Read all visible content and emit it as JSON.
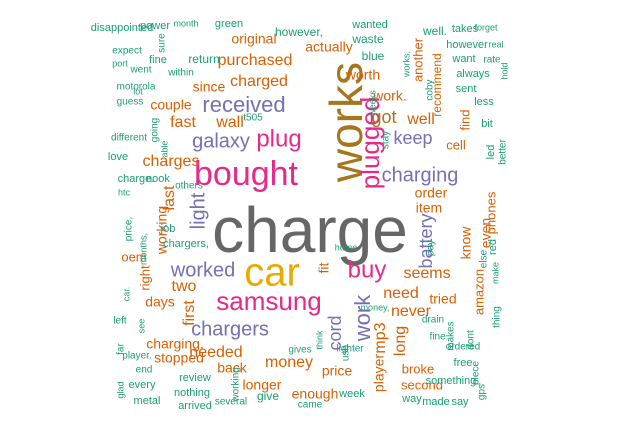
{
  "palette": {
    "teal": "#1b9e77",
    "orange": "#d95f02",
    "purple": "#7570b3",
    "magenta": "#e7298a",
    "gold": "#e6ab02",
    "brown": "#a6761d",
    "gray": "#666666"
  },
  "words": [
    {
      "text": "charge",
      "color": "gray"
    },
    {
      "text": "car",
      "color": "gold"
    },
    {
      "text": "works",
      "color": "brown"
    },
    {
      "text": "bought",
      "color": "magenta"
    },
    {
      "text": "samsung",
      "color": "magenta"
    },
    {
      "text": "plugged",
      "color": "magenta"
    },
    {
      "text": "buy",
      "color": "magenta"
    },
    {
      "text": "plug",
      "color": "magenta"
    },
    {
      "text": "work",
      "color": "purple"
    },
    {
      "text": "received",
      "color": "purple"
    },
    {
      "text": "charging",
      "color": "purple"
    },
    {
      "text": "galaxy",
      "color": "purple"
    },
    {
      "text": "chargers",
      "color": "purple"
    },
    {
      "text": "worked",
      "color": "purple"
    },
    {
      "text": "light",
      "color": "purple"
    },
    {
      "text": "cord",
      "color": "purple"
    },
    {
      "text": "keep",
      "color": "purple"
    },
    {
      "text": "battery",
      "color": "purple"
    },
    {
      "text": "got",
      "color": "brown"
    },
    {
      "text": "purchased",
      "color": "orange"
    },
    {
      "text": "charged",
      "color": "orange"
    },
    {
      "text": "fast",
      "color": "orange"
    },
    {
      "text": "wall",
      "color": "orange"
    },
    {
      "text": "charges",
      "color": "orange"
    },
    {
      "text": "last",
      "color": "orange"
    },
    {
      "text": "two",
      "color": "orange"
    },
    {
      "text": "first",
      "color": "orange"
    },
    {
      "text": "needed",
      "color": "orange"
    },
    {
      "text": "money",
      "color": "orange"
    },
    {
      "text": "price",
      "color": "orange"
    },
    {
      "text": "seems",
      "color": "orange"
    },
    {
      "text": "need",
      "color": "orange"
    },
    {
      "text": "never",
      "color": "orange"
    },
    {
      "text": "long",
      "color": "orange"
    },
    {
      "text": "mp3",
      "color": "orange"
    },
    {
      "text": "order",
      "color": "orange"
    },
    {
      "text": "item",
      "color": "orange"
    },
    {
      "text": "well",
      "color": "orange"
    },
    {
      "text": "worth",
      "color": "orange"
    },
    {
      "text": "actually",
      "color": "orange"
    },
    {
      "text": "original",
      "color": "orange"
    },
    {
      "text": "since",
      "color": "orange"
    },
    {
      "text": "couple",
      "color": "orange"
    },
    {
      "text": "days",
      "color": "orange"
    },
    {
      "text": "back",
      "color": "orange"
    },
    {
      "text": "longer",
      "color": "orange"
    },
    {
      "text": "enough",
      "color": "orange"
    },
    {
      "text": "stopped",
      "color": "orange"
    },
    {
      "text": "charging.",
      "color": "orange"
    },
    {
      "text": "working",
      "color": "orange"
    },
    {
      "text": "right",
      "color": "orange"
    },
    {
      "text": "tried",
      "color": "orange"
    },
    {
      "text": "know",
      "color": "orange"
    },
    {
      "text": "even",
      "color": "orange"
    },
    {
      "text": "fit",
      "color": "orange"
    },
    {
      "text": "work.",
      "color": "orange"
    },
    {
      "text": "player",
      "color": "orange"
    },
    {
      "text": "broke",
      "color": "orange"
    },
    {
      "text": "second",
      "color": "orange"
    },
    {
      "text": "amazon",
      "color": "orange"
    },
    {
      "text": "phones",
      "color": "orange"
    },
    {
      "text": "find",
      "color": "orange"
    },
    {
      "text": "recommend",
      "color": "orange"
    },
    {
      "text": "another",
      "color": "orange"
    },
    {
      "text": "cell",
      "color": "orange"
    },
    {
      "text": "oem",
      "color": "orange"
    },
    {
      "text": "disappointed",
      "color": "teal"
    },
    {
      "text": "power",
      "color": "teal"
    },
    {
      "text": "month",
      "color": "teal"
    },
    {
      "text": "green",
      "color": "teal"
    },
    {
      "text": "however,",
      "color": "teal"
    },
    {
      "text": "wanted",
      "color": "teal"
    },
    {
      "text": "well.",
      "color": "teal"
    },
    {
      "text": "takes",
      "color": "teal"
    },
    {
      "text": "forget",
      "color": "teal"
    },
    {
      "text": "sure",
      "color": "teal"
    },
    {
      "text": "waste",
      "color": "teal"
    },
    {
      "text": "however",
      "color": "teal"
    },
    {
      "text": "real",
      "color": "teal"
    },
    {
      "text": "expect",
      "color": "teal"
    },
    {
      "text": "fine",
      "color": "teal"
    },
    {
      "text": "return",
      "color": "teal"
    },
    {
      "text": "blue",
      "color": "teal"
    },
    {
      "text": "works.",
      "color": "teal"
    },
    {
      "text": "want",
      "color": "teal"
    },
    {
      "text": "rate",
      "color": "teal"
    },
    {
      "text": "port",
      "color": "teal"
    },
    {
      "text": "went",
      "color": "teal"
    },
    {
      "text": "within",
      "color": "teal"
    },
    {
      "text": "always",
      "color": "teal"
    },
    {
      "text": "hold",
      "color": "teal"
    },
    {
      "text": "motorola",
      "color": "teal"
    },
    {
      "text": "sent",
      "color": "teal"
    },
    {
      "text": "lot",
      "color": "teal"
    },
    {
      "text": "less",
      "color": "teal"
    },
    {
      "text": "guess",
      "color": "teal"
    },
    {
      "text": "coby",
      "color": "teal"
    },
    {
      "text": "weeks",
      "color": "teal"
    },
    {
      "text": "t505",
      "color": "teal"
    },
    {
      "text": "different",
      "color": "teal"
    },
    {
      "text": "going",
      "color": "teal"
    },
    {
      "text": "able",
      "color": "teal"
    },
    {
      "text": "bit",
      "color": "teal"
    },
    {
      "text": "stay",
      "color": "teal"
    },
    {
      "text": "love",
      "color": "teal"
    },
    {
      "text": "charge.",
      "color": "teal"
    },
    {
      "text": "nook",
      "color": "teal"
    },
    {
      "text": "led",
      "color": "teal"
    },
    {
      "text": "better",
      "color": "teal"
    },
    {
      "text": "others",
      "color": "teal"
    },
    {
      "text": "htc",
      "color": "teal"
    },
    {
      "text": "job",
      "color": "teal"
    },
    {
      "text": "pay",
      "color": "teal"
    },
    {
      "text": "red",
      "color": "teal"
    },
    {
      "text": "price,",
      "color": "teal"
    },
    {
      "text": "chargers,",
      "color": "teal"
    },
    {
      "text": "home",
      "color": "teal"
    },
    {
      "text": "else",
      "color": "teal"
    },
    {
      "text": "make",
      "color": "teal"
    },
    {
      "text": "months,",
      "color": "teal"
    },
    {
      "text": "car.",
      "color": "teal"
    },
    {
      "text": "money,",
      "color": "teal"
    },
    {
      "text": "left",
      "color": "teal"
    },
    {
      "text": "see",
      "color": "teal"
    },
    {
      "text": "think",
      "color": "teal"
    },
    {
      "text": "drain",
      "color": "teal"
    },
    {
      "text": "fine.",
      "color": "teal"
    },
    {
      "text": "makes",
      "color": "teal"
    },
    {
      "text": "ordered",
      "color": "teal"
    },
    {
      "text": "dont",
      "color": "teal"
    },
    {
      "text": "thing",
      "color": "teal"
    },
    {
      "text": "lighter",
      "color": "teal"
    },
    {
      "text": "gives",
      "color": "teal"
    },
    {
      "text": "usb",
      "color": "teal"
    },
    {
      "text": "far",
      "color": "teal"
    },
    {
      "text": "player.",
      "color": "teal"
    },
    {
      "text": "end",
      "color": "teal"
    },
    {
      "text": "every",
      "color": "teal"
    },
    {
      "text": "review",
      "color": "teal"
    },
    {
      "text": "working.",
      "color": "teal"
    },
    {
      "text": "free",
      "color": "teal"
    },
    {
      "text": "piece",
      "color": "teal"
    },
    {
      "text": "something",
      "color": "teal"
    },
    {
      "text": "glad",
      "color": "teal"
    },
    {
      "text": "metal",
      "color": "teal"
    },
    {
      "text": "nothing",
      "color": "teal"
    },
    {
      "text": "arrived",
      "color": "teal"
    },
    {
      "text": "several",
      "color": "teal"
    },
    {
      "text": "give",
      "color": "teal"
    },
    {
      "text": "came",
      "color": "teal"
    },
    {
      "text": "week",
      "color": "teal"
    },
    {
      "text": "way",
      "color": "teal"
    },
    {
      "text": "made",
      "color": "teal"
    },
    {
      "text": "say",
      "color": "teal"
    },
    {
      "text": "gps",
      "color": "teal"
    },
    {
      "text": "bright",
      "color": "teal"
    }
  ]
}
